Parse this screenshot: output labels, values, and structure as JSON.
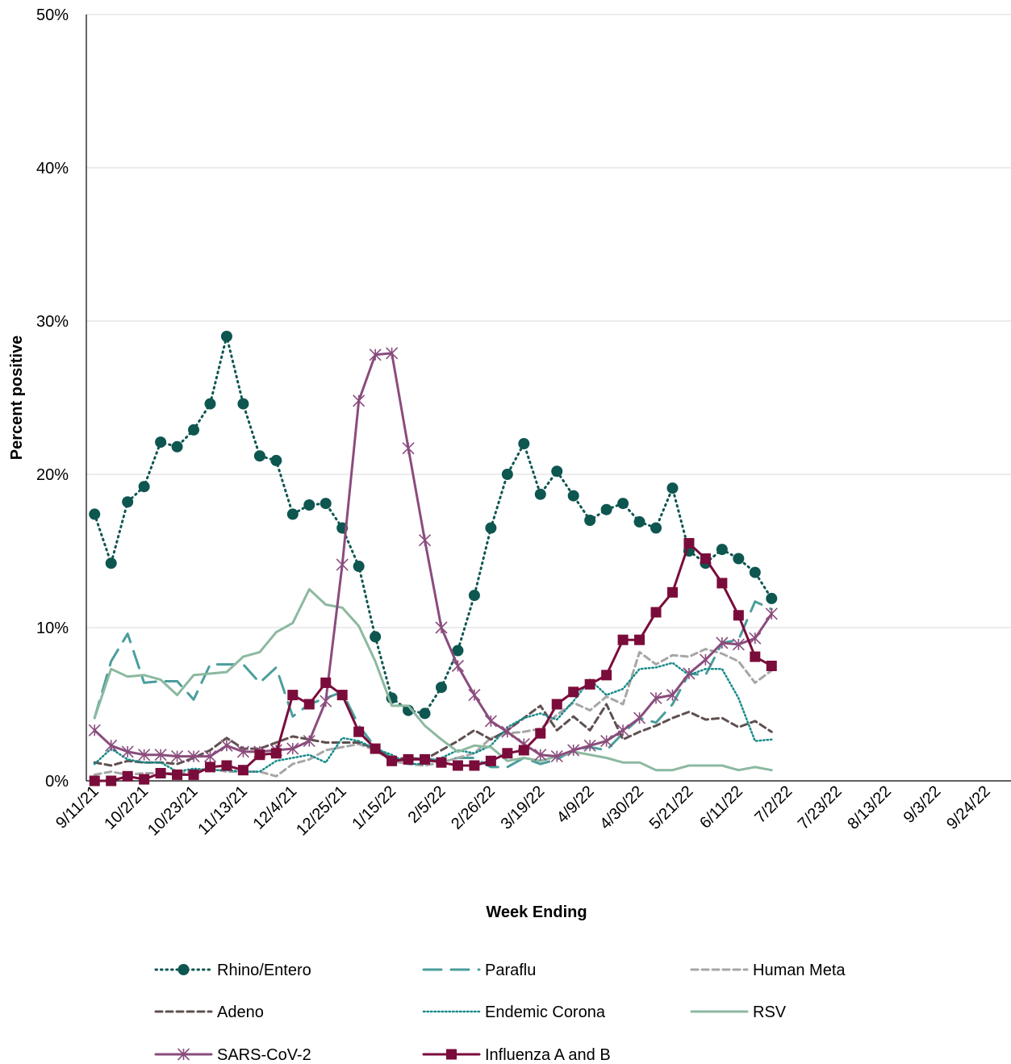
{
  "chart_data": {
    "type": "line",
    "x_label": "Week Ending",
    "y_label": "Percent positive",
    "categories": [
      "9/11/21",
      null,
      null,
      "10/2/21",
      null,
      null,
      "10/23/21",
      null,
      null,
      "11/13/21",
      null,
      null,
      "12/4/21",
      null,
      null,
      "12/25/21",
      null,
      null,
      "1/15/22",
      null,
      null,
      "2/5/22",
      null,
      null,
      "2/26/22",
      null,
      null,
      "3/19/22",
      null,
      null,
      "4/9/22",
      null,
      null,
      "4/30/22",
      null,
      null,
      "5/21/22",
      null,
      null,
      "6/11/22",
      null,
      null,
      "7/2/22",
      null,
      null,
      "7/23/22",
      null,
      null,
      "8/13/22",
      null,
      null,
      "9/3/22",
      null,
      null,
      "9/24/22",
      null
    ],
    "ylim": [
      0,
      50
    ],
    "yticks": [
      {
        "value": 0,
        "label": "0%"
      },
      {
        "value": 10,
        "label": "10%"
      },
      {
        "value": 20,
        "label": "20%"
      },
      {
        "value": 30,
        "label": "30%"
      },
      {
        "value": 40,
        "label": "40%"
      },
      {
        "value": 50,
        "label": "50%"
      }
    ],
    "grid": true,
    "legend": "bottom",
    "series": [
      {
        "name": "Rhino/Entero",
        "color": "#0e5650",
        "line_style": "dotted",
        "marker": "circle",
        "values": [
          17.4,
          14.2,
          18.2,
          19.2,
          22.1,
          21.8,
          22.9,
          24.6,
          29.0,
          24.6,
          21.2,
          20.9,
          17.4,
          18.0,
          18.1,
          16.5,
          14.0,
          9.4,
          5.4,
          4.6,
          4.4,
          6.1,
          8.5,
          12.1,
          16.5,
          20.0,
          22.0,
          18.7,
          20.2,
          18.6,
          17.0,
          17.7,
          18.1,
          16.9,
          16.5,
          19.1,
          15.0,
          14.2,
          15.1,
          14.5,
          13.6,
          11.9,
          null,
          null,
          null,
          null,
          null,
          null,
          null,
          null,
          null,
          null,
          null,
          null,
          null,
          null
        ]
      },
      {
        "name": "Paraflu",
        "color": "#4a9e9c",
        "line_style": "long-dash",
        "marker": "none",
        "values": [
          4.1,
          7.8,
          9.6,
          6.4,
          6.5,
          6.5,
          5.3,
          7.6,
          7.6,
          7.6,
          6.4,
          7.4,
          4.2,
          5.0,
          5.4,
          5.8,
          3.6,
          2.2,
          1.5,
          1.4,
          1.5,
          1.3,
          1.5,
          1.5,
          0.9,
          0.9,
          1.5,
          1.1,
          1.4,
          2.0,
          2.2,
          2.0,
          3.1,
          4.1,
          3.8,
          5.0,
          7.0,
          6.9,
          9.0,
          9.2,
          11.7,
          11.2,
          null,
          null,
          null,
          null,
          null,
          null,
          null,
          null,
          null,
          null,
          null,
          null,
          null,
          null
        ]
      },
      {
        "name": "Human Meta",
        "color": "#a6a6a6",
        "line_style": "dash",
        "marker": "none",
        "values": [
          0.4,
          0.6,
          0.4,
          0.5,
          0.5,
          0.5,
          0.6,
          0.8,
          0.6,
          0.6,
          0.6,
          0.3,
          1.1,
          1.4,
          2.0,
          2.2,
          2.4,
          2.0,
          1.3,
          1.1,
          1.0,
          1.2,
          1.5,
          1.8,
          2.8,
          3.1,
          3.2,
          3.4,
          4.3,
          5.1,
          4.6,
          5.5,
          5.0,
          8.4,
          7.6,
          8.2,
          8.1,
          8.6,
          8.3,
          7.8,
          6.4,
          7.2,
          null,
          null,
          null,
          null,
          null,
          null,
          null,
          null,
          null,
          null,
          null,
          null,
          null,
          null
        ]
      },
      {
        "name": "Adeno",
        "color": "#5f5050",
        "line_style": "dash",
        "marker": "none",
        "values": [
          1.2,
          1.0,
          1.3,
          1.2,
          1.2,
          1.1,
          1.5,
          2.0,
          2.8,
          2.1,
          2.1,
          2.5,
          2.9,
          2.7,
          2.5,
          2.5,
          2.5,
          2.1,
          1.4,
          1.5,
          1.4,
          2.0,
          2.6,
          3.3,
          2.7,
          3.3,
          4.1,
          4.9,
          3.3,
          4.2,
          3.3,
          5.0,
          2.7,
          3.2,
          3.6,
          4.1,
          4.5,
          4.0,
          4.1,
          3.5,
          3.9,
          3.2,
          null,
          null,
          null,
          null,
          null,
          null,
          null,
          null,
          null,
          null,
          null,
          null,
          null,
          null
        ]
      },
      {
        "name": "Endemic Corona",
        "color": "#178a88",
        "line_style": "fine-dotted",
        "marker": "none",
        "values": [
          1.1,
          2.1,
          1.4,
          1.2,
          1.2,
          0.6,
          0.8,
          0.7,
          0.7,
          0.6,
          0.6,
          1.3,
          1.5,
          1.7,
          1.2,
          2.8,
          2.6,
          2.1,
          1.7,
          1.1,
          1.1,
          1.5,
          2.0,
          1.8,
          2.3,
          3.5,
          4.1,
          4.4,
          4.0,
          5.2,
          6.6,
          5.6,
          6.0,
          7.3,
          7.4,
          7.7,
          6.9,
          7.3,
          7.3,
          5.4,
          2.6,
          2.7,
          null,
          null,
          null,
          null,
          null,
          null,
          null,
          null,
          null,
          null,
          null,
          null,
          null,
          null
        ]
      },
      {
        "name": "RSV",
        "color": "#8cb9a0",
        "line_style": "solid",
        "marker": "none",
        "values": [
          4.1,
          7.3,
          6.8,
          6.9,
          6.6,
          5.6,
          6.9,
          7.0,
          7.1,
          8.1,
          8.4,
          9.7,
          10.3,
          12.5,
          11.5,
          11.3,
          10.1,
          7.8,
          4.9,
          4.9,
          3.6,
          2.7,
          1.9,
          2.3,
          2.2,
          1.3,
          1.5,
          1.3,
          1.6,
          1.9,
          1.7,
          1.5,
          1.2,
          1.2,
          0.7,
          0.7,
          1.0,
          1.0,
          1.0,
          0.7,
          0.9,
          0.7,
          null,
          null,
          null,
          null,
          null,
          null,
          null,
          null,
          null,
          null,
          null,
          null,
          null,
          null
        ]
      },
      {
        "name": "SARS-CoV-2",
        "color": "#8a4c7d",
        "line_style": "solid",
        "marker": "asterisk",
        "values": [
          3.3,
          2.3,
          1.9,
          1.7,
          1.7,
          1.6,
          1.6,
          1.6,
          2.3,
          1.9,
          1.9,
          2.0,
          2.1,
          2.6,
          5.2,
          14.1,
          24.8,
          27.8,
          27.9,
          21.7,
          15.7,
          10.0,
          7.5,
          5.6,
          3.9,
          3.2,
          2.4,
          1.7,
          1.6,
          2.0,
          2.3,
          2.6,
          3.3,
          4.1,
          5.4,
          5.6,
          7.0,
          7.9,
          9.0,
          8.9,
          9.3,
          10.9,
          null,
          null,
          null,
          null,
          null,
          null,
          null,
          null,
          null,
          null,
          null,
          null,
          null,
          null
        ]
      },
      {
        "name": "Influenza A and B",
        "color": "#7a0c3b",
        "line_style": "solid",
        "marker": "square",
        "values": [
          0.0,
          0.0,
          0.3,
          0.1,
          0.5,
          0.4,
          0.4,
          0.9,
          1.0,
          0.7,
          1.7,
          1.8,
          5.6,
          5.0,
          6.4,
          5.6,
          3.2,
          2.1,
          1.3,
          1.4,
          1.4,
          1.2,
          1.0,
          1.0,
          1.3,
          1.8,
          2.0,
          3.1,
          5.0,
          5.8,
          6.3,
          6.9,
          9.2,
          9.2,
          11.0,
          12.3,
          15.5,
          14.5,
          12.9,
          10.8,
          8.1,
          7.5,
          null,
          null,
          null,
          null,
          null,
          null,
          null,
          null,
          null,
          null,
          null,
          null,
          null,
          null
        ]
      }
    ]
  }
}
